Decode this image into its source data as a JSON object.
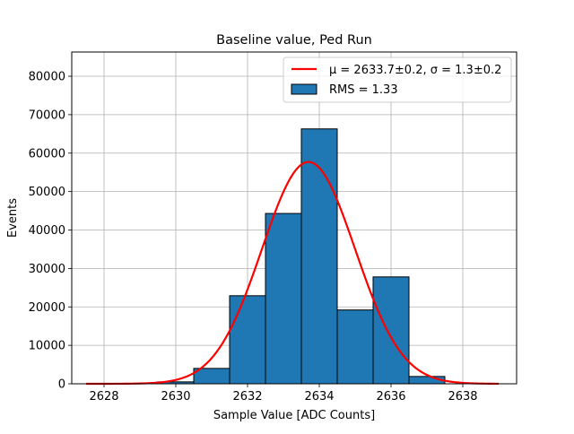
{
  "chart_data": {
    "type": "bar",
    "title": "Baseline value, Ped Run",
    "xlabel": "Sample Value [ADC Counts]",
    "ylabel": "Events",
    "xlim": [
      2627.1,
      2639.5
    ],
    "ylim": [
      0,
      86300
    ],
    "xticks": [
      2628,
      2630,
      2632,
      2634,
      2636,
      2638
    ],
    "xtick_labels": [
      "2628",
      "2630",
      "2632",
      "2634",
      "2636",
      "2638"
    ],
    "yticks": [
      0,
      10000,
      20000,
      30000,
      40000,
      50000,
      60000,
      70000,
      80000
    ],
    "ytick_labels": [
      "0",
      "10000",
      "20000",
      "30000",
      "40000",
      "50000",
      "60000",
      "70000",
      "80000"
    ],
    "grid": true,
    "legend_position": "top-right",
    "histogram": {
      "name": "RMS = 1.33",
      "color": "#1f77b4",
      "bins": [
        {
          "x0": 2627.5,
          "x1": 2628.5,
          "value": 0
        },
        {
          "x0": 2628.5,
          "x1": 2629.5,
          "value": 0
        },
        {
          "x0": 2629.5,
          "x1": 2630.5,
          "value": 500
        },
        {
          "x0": 2630.5,
          "x1": 2631.5,
          "value": 4000
        },
        {
          "x0": 2631.5,
          "x1": 2632.5,
          "value": 22900
        },
        {
          "x0": 2632.5,
          "x1": 2633.5,
          "value": 44300
        },
        {
          "x0": 2633.5,
          "x1": 2634.5,
          "value": 66300
        },
        {
          "x0": 2634.5,
          "x1": 2635.5,
          "value": 19200
        },
        {
          "x0": 2635.5,
          "x1": 2636.5,
          "value": 27800
        },
        {
          "x0": 2636.5,
          "x1": 2637.5,
          "value": 1900
        },
        {
          "x0": 2637.5,
          "x1": 2638.5,
          "value": 0
        }
      ]
    },
    "fit": {
      "name_math": "μ = 2633.7±0.2, σ = 1.3±0.2",
      "color": "#ff0000",
      "mu": 2633.7,
      "sigma": 1.3,
      "amplitude": 57700,
      "x_range": [
        2627.5,
        2639.0
      ]
    }
  }
}
